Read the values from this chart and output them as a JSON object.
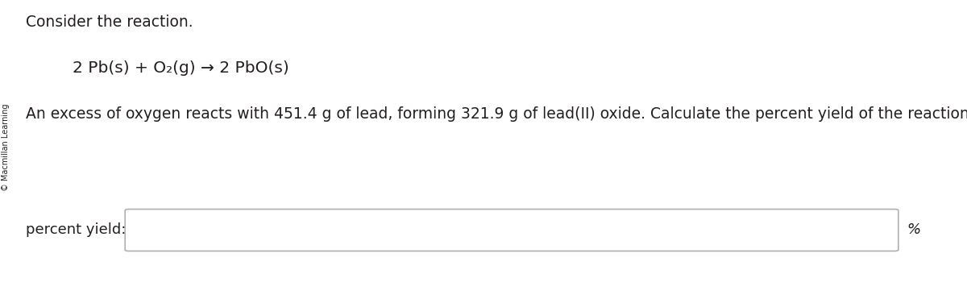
{
  "title": "Consider the reaction.",
  "equation": "2 Pb(s) + O₂(g) → 2 PbO(s)",
  "body_text": "An excess of oxygen reacts with 451.4 g of lead, forming 321.9 g of lead(II) oxide. Calculate the percent yield of the reaction.",
  "label_text": "percent yield:",
  "percent_symbol": "%",
  "watermark": "© Macmillan Learning",
  "bg_color": "#ffffff",
  "text_color": "#231f20",
  "box_border_color": "#b0b0b0",
  "title_fontsize": 13.5,
  "equation_fontsize": 14.5,
  "body_fontsize": 13.5,
  "label_fontsize": 13,
  "watermark_fontsize": 7,
  "percent_fontsize": 13
}
